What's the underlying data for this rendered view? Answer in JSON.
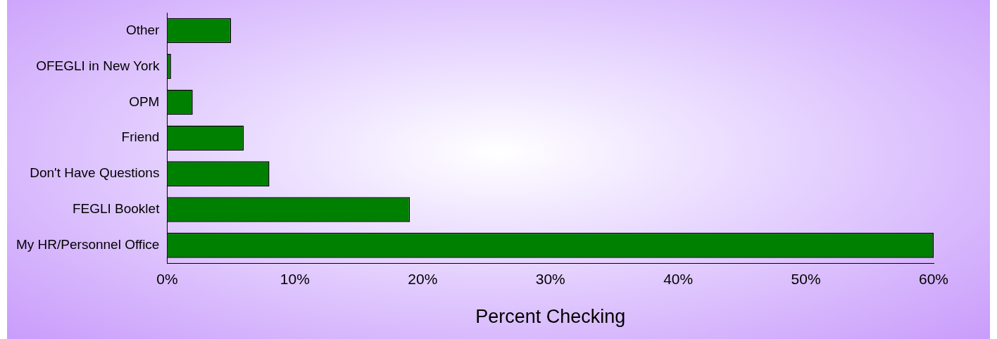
{
  "chart_data": {
    "type": "bar",
    "orientation": "horizontal",
    "xlabel": "Percent Checking",
    "categories": [
      "Other",
      "OFEGLI in New York",
      "OPM",
      "Friend",
      "Don't Have Questions",
      "FEGLI Booklet",
      "My HR/Personnel Office"
    ],
    "values": [
      5,
      0.3,
      2,
      6,
      8,
      19,
      60
    ],
    "color": "#008000",
    "xlim": [
      0,
      60
    ],
    "xticks": [
      {
        "value": 0,
        "label": "0%"
      },
      {
        "value": 10,
        "label": "10%"
      },
      {
        "value": 20,
        "label": "20%"
      },
      {
        "value": 30,
        "label": "30%"
      },
      {
        "value": 40,
        "label": "40%"
      },
      {
        "value": 50,
        "label": "50%"
      },
      {
        "value": 60,
        "label": "60%"
      }
    ],
    "grid": false,
    "legend": false
  }
}
